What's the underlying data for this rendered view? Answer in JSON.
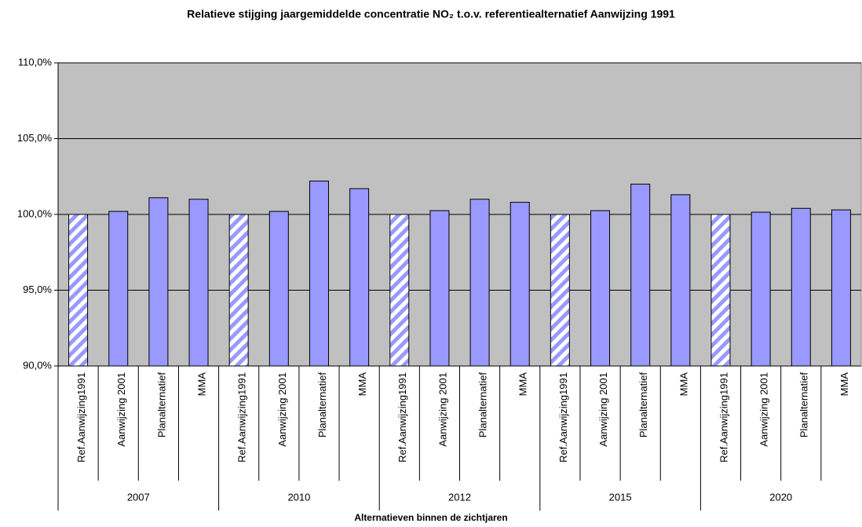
{
  "chart_data": {
    "type": "bar",
    "title": "Relatieve stijging jaargemiddelde concentratie NO₂ t.o.v. referentiealternatief Aanwijzing 1991",
    "x_label": "Alternatieven binnen de zichtjaren",
    "groups": [
      "2007",
      "2010",
      "2012",
      "2015",
      "2020"
    ],
    "categories": [
      "Ref.Aanwijzing1991",
      "Aanwijzing 2001",
      "Planalternatief",
      "MMA",
      "Ref.Aanwijzing1991",
      "Aanwijzing 2001",
      "Planalternatief",
      "MMA",
      "Ref.Aanwijzing1991",
      "Aanwijzing 2001",
      "Planalternatief",
      "MMA",
      "Ref.Aanwijzing1991",
      "Aanwijzing 2001",
      "Planalternatief",
      "MMA",
      "Ref.Aanwijzing1991",
      "Aanwijzing 2001",
      "Planalternatief",
      "MMA"
    ],
    "values": [
      100,
      100.2,
      101.1,
      101.0,
      100,
      100.2,
      102.2,
      101.7,
      100,
      100.25,
      101.0,
      100.8,
      100,
      100.25,
      102.0,
      101.3,
      100,
      100.15,
      100.4,
      100.3
    ],
    "styles": [
      "hatched",
      "solid",
      "solid",
      "solid",
      "hatched",
      "solid",
      "solid",
      "solid",
      "hatched",
      "solid",
      "solid",
      "solid",
      "hatched",
      "solid",
      "solid",
      "solid",
      "hatched",
      "solid",
      "solid",
      "solid"
    ],
    "color": "#9999ff",
    "background": "#c0c0c0",
    "ylim": [
      90,
      110
    ],
    "yticks": [
      {
        "value": 90,
        "label": "90,0%"
      },
      {
        "value": 95,
        "label": "95,0%"
      },
      {
        "value": 100,
        "label": "100,0%"
      },
      {
        "value": 105,
        "label": "105,0%"
      },
      {
        "value": 110,
        "label": "110,0%"
      }
    ],
    "grid": true
  }
}
